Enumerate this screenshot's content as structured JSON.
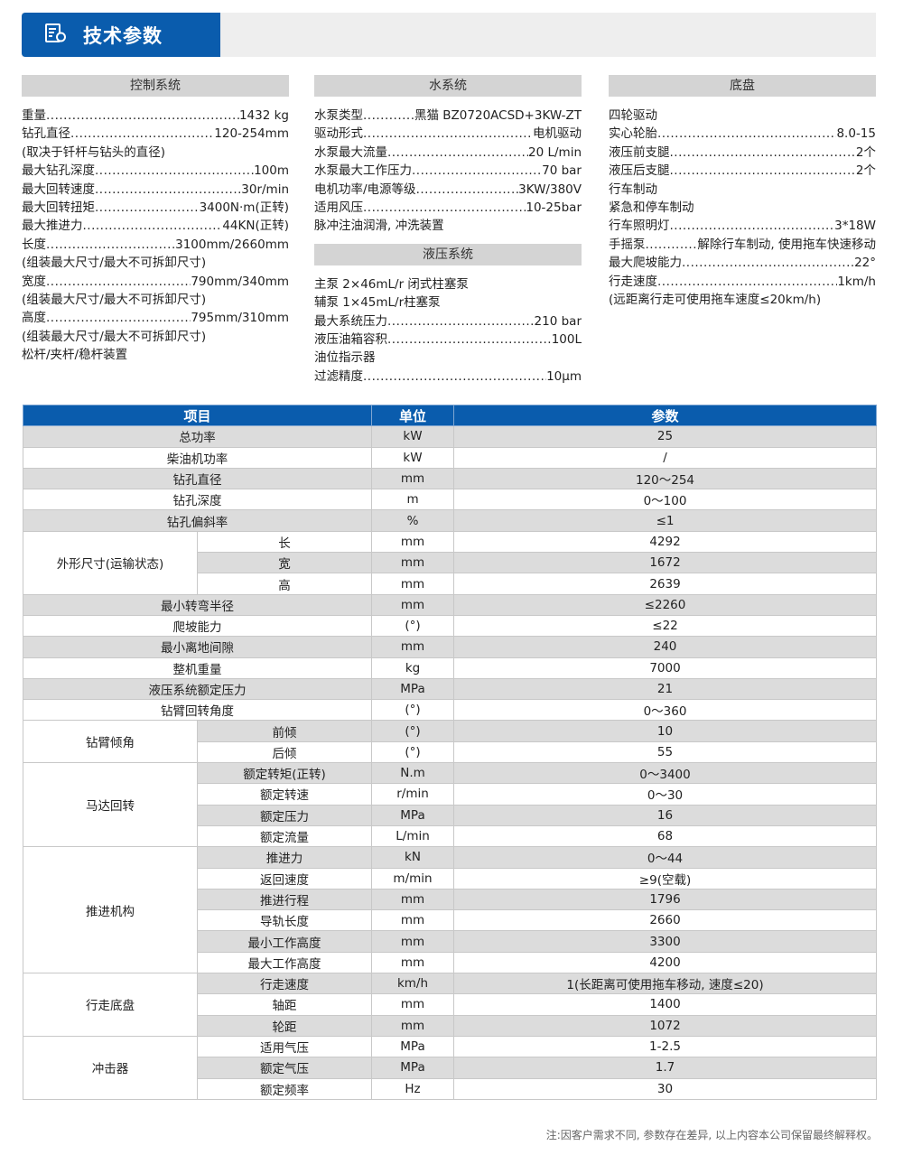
{
  "header": {
    "title": "技术参数",
    "icon": "document-gear-icon",
    "accent": "#0a5cad"
  },
  "columns": [
    {
      "sections": [
        {
          "title": "控制系统",
          "lines": [
            {
              "label": "重量",
              "value": "1432 kg"
            },
            {
              "label": "钻孔直径",
              "value": "120-254mm"
            },
            {
              "label": "(取决于钎杆与钻头的直径)"
            },
            {
              "label": "最大钻孔深度",
              "value": "100m"
            },
            {
              "label": "最大回转速度",
              "value": "30r/min"
            },
            {
              "label": "最大回转扭矩",
              "value": "3400N·m(正转)"
            },
            {
              "label": "最大推进力",
              "value": "44KN(正转)"
            },
            {
              "label": "长度",
              "value": "3100mm/2660mm"
            },
            {
              "label": "(组装最大尺寸/最大不可拆卸尺寸)"
            },
            {
              "label": "宽度",
              "value": "790mm/340mm"
            },
            {
              "label": "(组装最大尺寸/最大不可拆卸尺寸)"
            },
            {
              "label": "高度",
              "value": "795mm/310mm"
            },
            {
              "label": "(组装最大尺寸/最大不可拆卸尺寸)"
            },
            {
              "label": "松杆/夹杆/稳杆装置"
            }
          ]
        }
      ]
    },
    {
      "sections": [
        {
          "title": "水系统",
          "lines": [
            {
              "label": "水泵类型",
              "value": "黑猫 BZ0720ACSD+3KW-ZT"
            },
            {
              "label": "驱动形式",
              "value": "电机驱动"
            },
            {
              "label": "水泵最大流量",
              "value": "20 L/min"
            },
            {
              "label": "水泵最大工作压力",
              "value": "70 bar"
            },
            {
              "label": "电机功率/电源等级",
              "value": "3KW/380V"
            },
            {
              "label": "适用风压",
              "value": "10-25bar"
            },
            {
              "label": "脉冲注油润滑, 冲洗装置"
            }
          ]
        },
        {
          "title": "液压系统",
          "lines": [
            {
              "label": "主泵 2×46mL/r 闭式柱塞泵"
            },
            {
              "label": "辅泵 1×45mL/r柱塞泵"
            },
            {
              "label": "最大系统压力",
              "value": "210 bar"
            },
            {
              "label": "液压油箱容积",
              "value": "100L"
            },
            {
              "label": "油位指示器"
            },
            {
              "label": "过滤精度",
              "value": "10μm"
            }
          ]
        }
      ]
    },
    {
      "sections": [
        {
          "title": "底盘",
          "lines": [
            {
              "label": "四轮驱动"
            },
            {
              "label": "实心轮胎",
              "value": "8.0-15"
            },
            {
              "label": "液压前支腿",
              "value": "2个"
            },
            {
              "label": "液压后支腿",
              "value": "2个"
            },
            {
              "label": "行车制动"
            },
            {
              "label": "紧急和停车制动"
            },
            {
              "label": "行车照明灯",
              "value": "3*18W"
            },
            {
              "label": "手摇泵",
              "value": "解除行车制动, 使用拖车快速移动"
            },
            {
              "label": "最大爬坡能力",
              "value": "22°"
            },
            {
              "label": "行走速度",
              "value": "1km/h"
            },
            {
              "label": "(远距离行走可使用拖车速度≤20km/h)"
            }
          ]
        }
      ]
    }
  ],
  "table": {
    "headers": [
      "项目",
      "单位",
      "参数"
    ],
    "rows": [
      {
        "item": "总功率",
        "unit": "kW",
        "value": "25"
      },
      {
        "item": "柴油机功率",
        "unit": "kW",
        "value": "/"
      },
      {
        "item": "钻孔直径",
        "unit": "mm",
        "value": "120～254"
      },
      {
        "item": "钻孔深度",
        "unit": "m",
        "value": "0～100"
      },
      {
        "item": "钻孔偏斜率",
        "unit": "%",
        "value": "≤1"
      },
      {
        "group": "外形尺寸(运输状态)",
        "rows": [
          {
            "sub": "长",
            "unit": "mm",
            "value": "4292"
          },
          {
            "sub": "宽",
            "unit": "mm",
            "value": "1672"
          },
          {
            "sub": "高",
            "unit": "mm",
            "value": "2639"
          }
        ]
      },
      {
        "item": "最小转弯半径",
        "unit": "mm",
        "value": "≤2260"
      },
      {
        "item": "爬坡能力",
        "unit": "(°)",
        "value": "≤22"
      },
      {
        "item": "最小离地间隙",
        "unit": "mm",
        "value": "240"
      },
      {
        "item": "整机重量",
        "unit": "kg",
        "value": "7000"
      },
      {
        "item": "液压系统额定压力",
        "unit": "MPa",
        "value": "21"
      },
      {
        "item": "钻臂回转角度",
        "unit": "(°)",
        "value": "0～360"
      },
      {
        "group": "钻臂倾角",
        "rows": [
          {
            "sub": "前倾",
            "unit": "(°)",
            "value": "10"
          },
          {
            "sub": "后倾",
            "unit": "(°)",
            "value": "55"
          }
        ]
      },
      {
        "group": "马达回转",
        "rows": [
          {
            "sub": "额定转矩(正转)",
            "unit": "N.m",
            "value": "0～3400"
          },
          {
            "sub": "额定转速",
            "unit": "r/min",
            "value": "0～30"
          },
          {
            "sub": "额定压力",
            "unit": "MPa",
            "value": "16"
          },
          {
            "sub": "额定流量",
            "unit": "L/min",
            "value": "68"
          }
        ]
      },
      {
        "group": "推进机构",
        "rows": [
          {
            "sub": "推进力",
            "unit": "kN",
            "value": "0～44"
          },
          {
            "sub": "返回速度",
            "unit": "m/min",
            "value": "≥9(空载)"
          },
          {
            "sub": "推进行程",
            "unit": "mm",
            "value": "1796"
          },
          {
            "sub": "导轨长度",
            "unit": "mm",
            "value": "2660"
          },
          {
            "sub": "最小工作高度",
            "unit": "mm",
            "value": "3300"
          },
          {
            "sub": "最大工作高度",
            "unit": "mm",
            "value": "4200"
          }
        ]
      },
      {
        "group": "行走底盘",
        "rows": [
          {
            "sub": "行走速度",
            "unit": "km/h",
            "value": "1(长距离可使用拖车移动, 速度≤20)"
          },
          {
            "sub": "轴距",
            "unit": "mm",
            "value": "1400"
          },
          {
            "sub": "轮距",
            "unit": "mm",
            "value": "1072"
          }
        ]
      },
      {
        "group": "冲击器",
        "rows": [
          {
            "sub": "适用气压",
            "unit": "MPa",
            "value": "1-2.5"
          },
          {
            "sub": "额定气压",
            "unit": "MPa",
            "value": "1.7"
          },
          {
            "sub": "额定频率",
            "unit": "Hz",
            "value": "30"
          }
        ]
      }
    ]
  },
  "footer": {
    "note": "注:因客户需求不同, 参数存在差异, 以上内容本公司保留最终解释权。"
  }
}
